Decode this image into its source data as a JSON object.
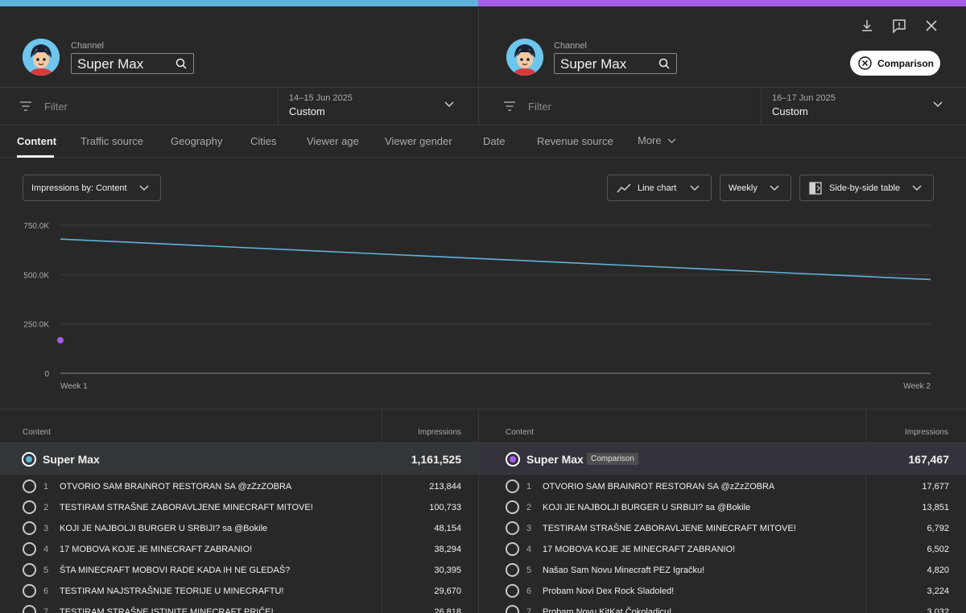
{
  "left": {
    "channel_label": "Channel",
    "channel_name": "Super Max",
    "filter_placeholder": "Filter",
    "date_range": "14–15 Jun 2025",
    "date_type": "Custom",
    "accent": "#5fb3d9"
  },
  "right": {
    "channel_label": "Channel",
    "channel_name": "Super Max",
    "filter_placeholder": "Filter",
    "date_range": "16–17 Jun 2025",
    "date_type": "Custom",
    "accent": "#a55ee6",
    "comparison_button": "Comparison"
  },
  "header_icons": [
    "download-icon",
    "feedback-icon",
    "close-icon"
  ],
  "tabs": [
    "Content",
    "Traffic source",
    "Geography",
    "Cities",
    "Viewer age",
    "Viewer gender",
    "Date",
    "Revenue source",
    "More"
  ],
  "controls": {
    "metric": "Impressions by: Content",
    "chart_type": "Line chart",
    "interval": "Weekly",
    "table_mode": "Side-by-side table"
  },
  "chart_data": {
    "type": "line",
    "x": [
      "Week 1",
      "Week 2"
    ],
    "ytick_labels": [
      "0",
      "250.0K",
      "500.0K",
      "750.0K"
    ],
    "ylim": [
      0,
      750000
    ],
    "grid": true,
    "legend": "none",
    "series": [
      {
        "color": "#5fb3d9",
        "values": [
          680000,
          475000
        ]
      },
      {
        "color": "#a55ee6",
        "values": [
          167467,
          null
        ]
      }
    ]
  },
  "table_left": {
    "col_content": "Content",
    "col_impressions": "Impressions",
    "total_name": "Super Max",
    "total_value": "1,161,525",
    "rows": [
      {
        "rank": "1",
        "title": "OTVORIO SAM BRAINROT RESTORAN SA @zZzZOBRA",
        "value": "213,844"
      },
      {
        "rank": "2",
        "title": "TESTIRAM STRAŠNE ZABORAVLJENE MINECRAFT MITOVE!",
        "value": "100,733"
      },
      {
        "rank": "3",
        "title": "KOJI JE NAJBOLJI BURGER U SRBIJI? sa @Bokile",
        "value": "48,154"
      },
      {
        "rank": "4",
        "title": "17 MOBOVA KOJE JE MINECRAFT ZABRANIO!",
        "value": "38,294"
      },
      {
        "rank": "5",
        "title": "ŠTA MINECRAFT MOBOVI RADE KADA IH NE GLEDAŠ?",
        "value": "30,395"
      },
      {
        "rank": "6",
        "title": "TESTIRAM NAJSTRAŠNIJE TEORIJE U MINECRAFTU!",
        "value": "29,670"
      },
      {
        "rank": "7",
        "title": "TESTIRAM STRAŠNE ISTINITE MINECRAFT PRIČE!",
        "value": "26,818"
      }
    ]
  },
  "table_right": {
    "col_content": "Content",
    "col_impressions": "Impressions",
    "total_name": "Super Max",
    "badge": "Comparison",
    "total_value": "167,467",
    "rows": [
      {
        "rank": "1",
        "title": "OTVORIO SAM BRAINROT RESTORAN SA @zZzZOBRA",
        "value": "17,677"
      },
      {
        "rank": "2",
        "title": "KOJI JE NAJBOLJI BURGER U SRBIJI? sa @Bokile",
        "value": "13,851"
      },
      {
        "rank": "3",
        "title": "TESTIRAM STRAŠNE ZABORAVLJENE MINECRAFT MITOVE!",
        "value": "6,792"
      },
      {
        "rank": "4",
        "title": "17 MOBOVA KOJE JE MINECRAFT ZABRANIO!",
        "value": "6,502"
      },
      {
        "rank": "5",
        "title": "Našao Sam Novu Minecraft PEZ Igračku!",
        "value": "4,820"
      },
      {
        "rank": "6",
        "title": "Probam Novi Dex Rock Sladoled!",
        "value": "3,224"
      },
      {
        "rank": "7",
        "title": "Probam Novu KitKat Čokoladicu!",
        "value": "3,032"
      }
    ]
  }
}
